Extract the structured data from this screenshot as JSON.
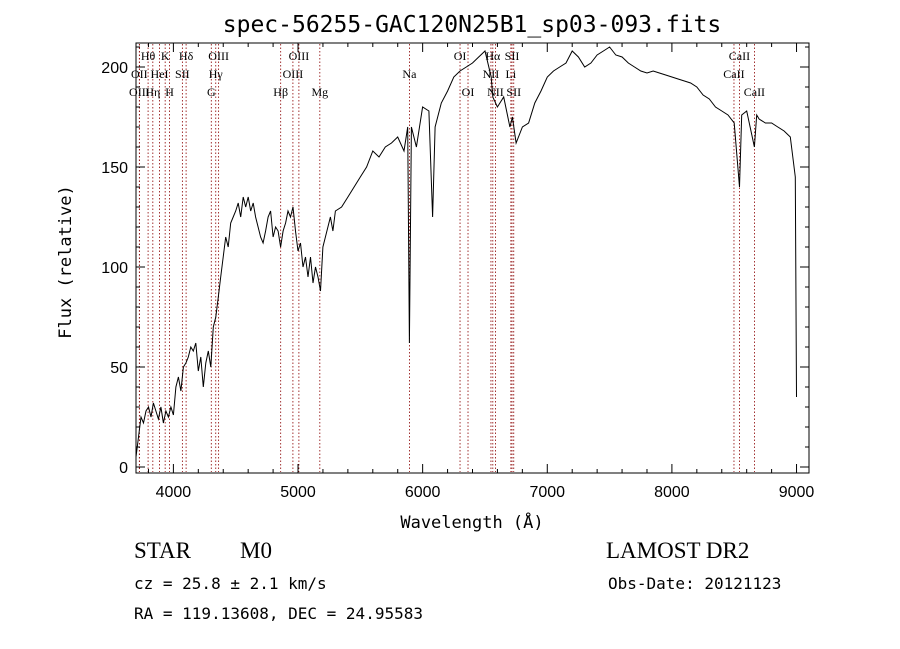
{
  "chart_data": {
    "type": "line",
    "title": "spec-56255-GAC120N25B1_sp03-093.fits",
    "xlabel": "Wavelength (Å)",
    "ylabel": "Flux (relative)",
    "xlim": [
      3700,
      9100
    ],
    "ylim": [
      -3,
      212
    ],
    "xticks": [
      "4000",
      "5000",
      "6000",
      "7000",
      "8000",
      "9000"
    ],
    "xtick_values": [
      4000,
      5000,
      6000,
      7000,
      8000,
      9000
    ],
    "yticks": [
      "0",
      "50",
      "100",
      "150",
      "200"
    ],
    "ytick_values": [
      0,
      50,
      100,
      150,
      200
    ],
    "grid": false,
    "line_color": "#000000",
    "marker_color": "#8b0000",
    "spectral_lines": [
      {
        "label": "Hθ",
        "wavelength": 3797,
        "row": 0
      },
      {
        "label": "OII",
        "wavelength": 3727,
        "row": 1
      },
      {
        "label": "OIII",
        "wavelength": 3727,
        "row": 2
      },
      {
        "label": "K",
        "wavelength": 3934,
        "row": 0
      },
      {
        "label": "HeI",
        "wavelength": 3889,
        "row": 1
      },
      {
        "label": "Hη",
        "wavelength": 3835,
        "row": 2
      },
      {
        "label": "H",
        "wavelength": 3969,
        "row": 2
      },
      {
        "label": "Hδ",
        "wavelength": 4102,
        "row": 0
      },
      {
        "label": "SII",
        "wavelength": 4072,
        "row": 1
      },
      {
        "label": "OIII",
        "wavelength": 4363,
        "row": 0
      },
      {
        "label": "Hγ",
        "wavelength": 4340,
        "row": 1
      },
      {
        "label": "G",
        "wavelength": 4304,
        "row": 2
      },
      {
        "label": "Hβ",
        "wavelength": 4861,
        "row": 2
      },
      {
        "label": "OIII",
        "wavelength": 5007,
        "row": 0
      },
      {
        "label": "OIII",
        "wavelength": 4959,
        "row": 1
      },
      {
        "label": "Mg",
        "wavelength": 5175,
        "row": 2
      },
      {
        "label": "Na",
        "wavelength": 5894,
        "row": 1
      },
      {
        "label": "OI",
        "wavelength": 6300,
        "row": 0
      },
      {
        "label": "OI",
        "wavelength": 6364,
        "row": 2
      },
      {
        "label": "Hα",
        "wavelength": 6563,
        "row": 0
      },
      {
        "label": "SII",
        "wavelength": 6717,
        "row": 0
      },
      {
        "label": "NII",
        "wavelength": 6548,
        "row": 1
      },
      {
        "label": "Li",
        "wavelength": 6708,
        "row": 1
      },
      {
        "label": "NII",
        "wavelength": 6584,
        "row": 2
      },
      {
        "label": "SII",
        "wavelength": 6731,
        "row": 2
      },
      {
        "label": "CaII",
        "wavelength": 8542,
        "row": 0
      },
      {
        "label": "CaII",
        "wavelength": 8498,
        "row": 1
      },
      {
        "label": "CaII",
        "wavelength": 8662,
        "row": 2
      }
    ],
    "series": [
      {
        "x": [
          3700,
          3720,
          3740,
          3760,
          3780,
          3800,
          3820,
          3840,
          3860,
          3880,
          3900,
          3920,
          3940,
          3960,
          3980,
          4000,
          4020,
          4040,
          4060,
          4080,
          4100,
          4120,
          4140,
          4160,
          4180,
          4200,
          4220,
          4240,
          4260,
          4280,
          4300,
          4320,
          4340,
          4360,
          4380,
          4400,
          4420,
          4440,
          4460,
          4480,
          4500,
          4520,
          4540,
          4560,
          4580,
          4600,
          4620,
          4640,
          4660,
          4680,
          4700,
          4720,
          4740,
          4760,
          4780,
          4800,
          4820,
          4840,
          4860,
          4880,
          4900,
          4920,
          4940,
          4960,
          4980,
          5000,
          5020,
          5040,
          5060,
          5080,
          5100,
          5120,
          5140,
          5160,
          5180,
          5200,
          5220,
          5240,
          5260,
          5280,
          5300,
          5350,
          5400,
          5450,
          5500,
          5550,
          5600,
          5650,
          5700,
          5750,
          5800,
          5850,
          5880,
          5894,
          5910,
          5950,
          6000,
          6050,
          6080,
          6100,
          6150,
          6200,
          6250,
          6300,
          6350,
          6400,
          6450,
          6500,
          6550,
          6563,
          6600,
          6650,
          6700,
          6720,
          6750,
          6800,
          6850,
          6900,
          6950,
          7000,
          7050,
          7100,
          7150,
          7200,
          7250,
          7300,
          7350,
          7400,
          7450,
          7500,
          7550,
          7600,
          7650,
          7700,
          7750,
          7800,
          7850,
          7900,
          7950,
          8000,
          8050,
          8100,
          8150,
          8200,
          8250,
          8300,
          8350,
          8400,
          8450,
          8500,
          8542,
          8560,
          8600,
          8662,
          8680,
          8700,
          8750,
          8800,
          8850,
          8900,
          8950,
          8990,
          9000
        ],
        "y": [
          5,
          15,
          25,
          22,
          28,
          30,
          25,
          32,
          28,
          24,
          30,
          22,
          28,
          25,
          30,
          26,
          40,
          45,
          38,
          50,
          52,
          55,
          60,
          58,
          62,
          48,
          55,
          40,
          52,
          58,
          50,
          70,
          75,
          85,
          95,
          105,
          115,
          110,
          122,
          125,
          128,
          132,
          125,
          135,
          130,
          135,
          128,
          132,
          125,
          120,
          115,
          112,
          118,
          125,
          128,
          115,
          120,
          118,
          110,
          118,
          122,
          128,
          125,
          130,
          118,
          108,
          112,
          100,
          105,
          95,
          105,
          92,
          100,
          95,
          88,
          110,
          115,
          120,
          125,
          118,
          128,
          130,
          135,
          140,
          145,
          150,
          158,
          155,
          160,
          162,
          165,
          158,
          170,
          62,
          170,
          160,
          180,
          178,
          125,
          170,
          182,
          188,
          195,
          198,
          200,
          202,
          205,
          208,
          195,
          185,
          180,
          185,
          170,
          175,
          162,
          170,
          172,
          182,
          188,
          195,
          198,
          200,
          202,
          208,
          205,
          200,
          202,
          206,
          208,
          210,
          206,
          205,
          202,
          200,
          198,
          197,
          198,
          197,
          196,
          195,
          194,
          193,
          192,
          190,
          186,
          184,
          180,
          178,
          176,
          172,
          140,
          176,
          178,
          160,
          176,
          174,
          172,
          172,
          170,
          168,
          165,
          145,
          35
        ]
      }
    ]
  },
  "info": {
    "class": "STAR",
    "subclass": "M0",
    "survey": "LAMOST DR2",
    "cz": "cz = 25.8 ± 2.1 km/s",
    "obs_date": "Obs-Date: 20121123",
    "coords": "RA = 119.13608, DEC =  24.95583"
  }
}
